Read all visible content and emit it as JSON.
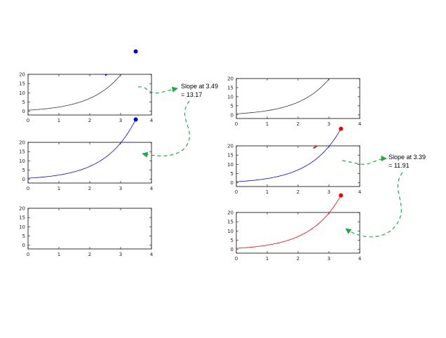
{
  "chart_data": {
    "type": "line",
    "function": "exp(x) - 1 + 0.6",
    "xlim": [
      0,
      4
    ],
    "ylim": [
      -2,
      20
    ],
    "x_ticks": [
      0,
      1,
      2,
      3,
      4
    ],
    "y_ticks": [
      0,
      5,
      10,
      15,
      20
    ],
    "grid": false,
    "colors": {
      "base": "#333333",
      "left": "#0000dd",
      "right": "#ee0000",
      "arrow": "#22aa44"
    },
    "panels": [
      {
        "id": "left-top",
        "curve": "full",
        "curve_color": "base",
        "tangent": true,
        "point": true,
        "accent": "left"
      },
      {
        "id": "left-middle",
        "curve": "partial",
        "curve_color": "left",
        "tangent": false,
        "point": true,
        "accent": "left"
      },
      {
        "id": "left-bottom",
        "curve": "none",
        "tangent": false,
        "point": false,
        "accent": "left"
      },
      {
        "id": "right-top",
        "curve": "full",
        "curve_color": "base",
        "tangent": false,
        "point": false,
        "accent": "right"
      },
      {
        "id": "right-middle",
        "curve": "full-split",
        "curve_color": "left",
        "tangent": true,
        "point": true,
        "accent": "right"
      },
      {
        "id": "right-bottom",
        "curve": "partial",
        "curve_color": "right",
        "tangent": false,
        "point": true,
        "accent": "right"
      }
    ],
    "annotations": [
      {
        "id": "left",
        "x": 3.49,
        "slope": 13.17,
        "line1": "Slope at 3.49",
        "line2": "= 13.17"
      },
      {
        "id": "right",
        "x": 3.39,
        "slope": 11.91,
        "line1": "Slope at 3.39",
        "line2": "= 11.91"
      }
    ]
  }
}
